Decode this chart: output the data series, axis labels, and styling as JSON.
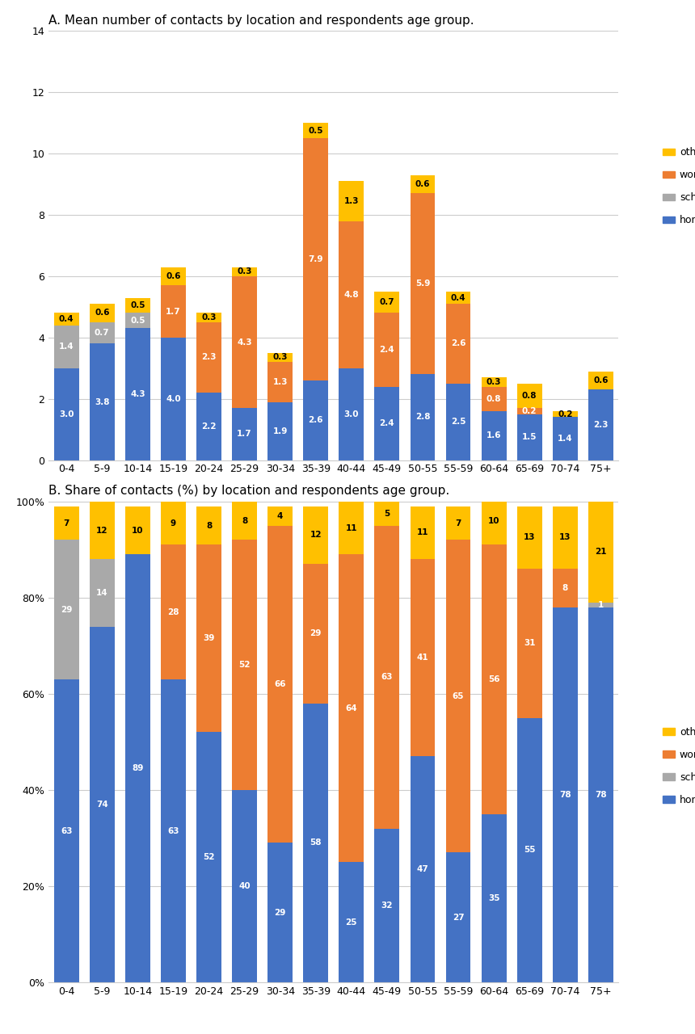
{
  "age_groups": [
    "0-4",
    "5-9",
    "10-14",
    "15-19",
    "20-24",
    "25-29",
    "30-34",
    "35-39",
    "40-44",
    "45-49",
    "50-55",
    "55-59",
    "60-64",
    "65-69",
    "70-74",
    "75+"
  ],
  "chart_a": {
    "title": "A. Mean number of contacts by location and respondents age group.",
    "ylim": [
      0,
      14
    ],
    "yticks": [
      0,
      2,
      4,
      6,
      8,
      10,
      12,
      14
    ],
    "home": [
      3.0,
      3.8,
      4.3,
      4.0,
      2.2,
      1.7,
      1.9,
      2.6,
      3.0,
      2.4,
      2.8,
      2.5,
      1.6,
      1.5,
      1.4,
      2.3
    ],
    "school": [
      1.4,
      0.7,
      0.5,
      0.0,
      0.0,
      0.0,
      0.0,
      0.0,
      0.0,
      0.0,
      0.0,
      0.0,
      0.0,
      0.0,
      0.0,
      0.0
    ],
    "work": [
      0.0,
      0.0,
      0.0,
      1.7,
      2.3,
      4.3,
      1.3,
      7.9,
      4.8,
      2.4,
      5.9,
      2.6,
      0.8,
      0.2,
      0.0,
      0.0
    ],
    "other": [
      0.4,
      0.6,
      0.5,
      0.6,
      0.3,
      0.3,
      0.3,
      0.5,
      1.3,
      0.7,
      0.6,
      0.4,
      0.3,
      0.8,
      0.2,
      0.6
    ],
    "home_labels": [
      "3.0",
      "3.8",
      "4.3",
      "4.0",
      "2.2",
      "1.7",
      "1.9",
      "2.6",
      "3.0",
      "2.4",
      "2.8",
      "2.5",
      "1.6",
      "1.5",
      "1.4",
      "2.3"
    ],
    "school_labels": [
      "1.4",
      "0.7",
      "0.5",
      "",
      "",
      "",
      "",
      "",
      "",
      "",
      "",
      "",
      "",
      "",
      "",
      ""
    ],
    "work_labels": [
      "",
      "",
      "",
      "1.7",
      "2.3",
      "4.3",
      "1.3",
      "7.9",
      "4.8",
      "2.4",
      "5.9",
      "2.6",
      "0.8",
      "0.2",
      "",
      ""
    ],
    "other_labels": [
      "0.4",
      "0.6",
      "0.5",
      "0.6",
      "0.3",
      "0.3",
      "0.3",
      "0.5",
      "1.3",
      "0.7",
      "0.6",
      "0.4",
      "0.3",
      "0.8",
      "0.2",
      "0.6"
    ]
  },
  "chart_b": {
    "title": "B. Share of contacts (%) by location and respondents age group.",
    "ylim": [
      0,
      100
    ],
    "ytick_labels": [
      "0%",
      "20%",
      "40%",
      "60%",
      "80%",
      "100%"
    ],
    "home": [
      63,
      74,
      89,
      63,
      52,
      40,
      29,
      58,
      25,
      32,
      47,
      27,
      35,
      55,
      78,
      78
    ],
    "school": [
      29,
      14,
      0,
      0,
      0,
      0,
      0,
      0,
      0,
      0,
      0,
      0,
      0,
      0,
      0,
      1
    ],
    "work": [
      0,
      0,
      0,
      28,
      39,
      52,
      66,
      29,
      64,
      63,
      41,
      65,
      56,
      31,
      8,
      0
    ],
    "other": [
      7,
      12,
      10,
      9,
      8,
      8,
      4,
      12,
      11,
      5,
      11,
      7,
      10,
      13,
      13,
      21
    ],
    "home_labels": [
      "63",
      "74",
      "89",
      "63",
      "52",
      "40",
      "29",
      "58",
      "25",
      "32",
      "47",
      "27",
      "35",
      "55",
      "78",
      "78"
    ],
    "school_labels": [
      "29",
      "14",
      "",
      "",
      "",
      "",
      "",
      "",
      "",
      "",
      "",
      "",
      "",
      "",
      "",
      "1"
    ],
    "work_labels": [
      "",
      "",
      "",
      "28",
      "39",
      "52",
      "66",
      "29",
      "64",
      "63",
      "41",
      "65",
      "56",
      "31",
      "8",
      ""
    ],
    "other_labels": [
      "7",
      "12",
      "10",
      "9",
      "8",
      "8",
      "4",
      "12",
      "11",
      "5",
      "11",
      "7",
      "10",
      "13",
      "13",
      "21"
    ]
  },
  "colors": {
    "home": "#4472C4",
    "school": "#A9A9A9",
    "work": "#ED7D31",
    "other": "#FFC000"
  }
}
